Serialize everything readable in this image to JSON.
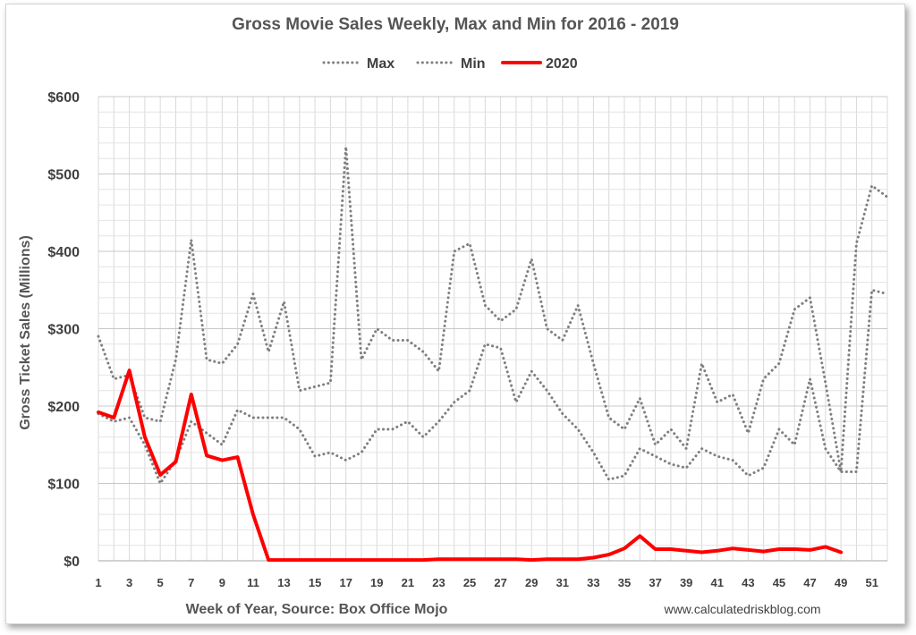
{
  "chart_data": {
    "type": "line",
    "title": "Gross Movie Sales Weekly, Max and Min for 2016 - 2019",
    "xlabel": "Week of Year, Source: Box Office Mojo",
    "ylabel": "Gross Ticket Sales (Millions)",
    "source_note": "www.calculatedriskblog.com",
    "xlim": [
      1,
      52
    ],
    "ylim": [
      0,
      600
    ],
    "y_ticks": [
      0,
      100,
      200,
      300,
      400,
      500,
      600
    ],
    "y_tick_labels": [
      "$0",
      "$100",
      "$200",
      "$300",
      "$400",
      "$500",
      "$600"
    ],
    "x_ticks": [
      1,
      3,
      5,
      7,
      9,
      11,
      13,
      15,
      17,
      19,
      21,
      23,
      25,
      27,
      29,
      31,
      33,
      35,
      37,
      39,
      41,
      43,
      45,
      47,
      49,
      51
    ],
    "grid": true,
    "legend_position": "top",
    "series": [
      {
        "name": "Max",
        "style": "dotted",
        "color": "#7f7f7f",
        "x": [
          1,
          2,
          3,
          4,
          5,
          6,
          7,
          8,
          9,
          10,
          11,
          12,
          13,
          14,
          15,
          16,
          17,
          18,
          19,
          20,
          21,
          22,
          23,
          24,
          25,
          26,
          27,
          28,
          29,
          30,
          31,
          32,
          33,
          34,
          35,
          36,
          37,
          38,
          39,
          40,
          41,
          42,
          43,
          44,
          45,
          46,
          47,
          48,
          49,
          50,
          51,
          52
        ],
        "values": [
          290,
          235,
          240,
          185,
          180,
          260,
          415,
          260,
          255,
          280,
          345,
          270,
          335,
          220,
          225,
          230,
          535,
          260,
          300,
          285,
          285,
          270,
          245,
          400,
          410,
          330,
          310,
          325,
          390,
          300,
          285,
          330,
          255,
          185,
          170,
          210,
          150,
          170,
          145,
          255,
          205,
          215,
          165,
          235,
          255,
          325,
          340,
          230,
          115,
          410,
          485,
          470
        ]
      },
      {
        "name": "Min",
        "style": "dotted",
        "color": "#7f7f7f",
        "x": [
          1,
          2,
          3,
          4,
          5,
          6,
          7,
          8,
          9,
          10,
          11,
          12,
          13,
          14,
          15,
          16,
          17,
          18,
          19,
          20,
          21,
          22,
          23,
          24,
          25,
          26,
          27,
          28,
          29,
          30,
          31,
          32,
          33,
          34,
          35,
          36,
          37,
          38,
          39,
          40,
          41,
          42,
          43,
          44,
          45,
          46,
          47,
          48,
          49,
          50,
          51,
          52
        ],
        "values": [
          190,
          180,
          185,
          150,
          100,
          130,
          180,
          165,
          150,
          195,
          185,
          185,
          185,
          170,
          135,
          140,
          130,
          140,
          170,
          170,
          180,
          160,
          180,
          205,
          220,
          280,
          275,
          205,
          245,
          220,
          190,
          170,
          140,
          105,
          110,
          145,
          135,
          125,
          120,
          145,
          135,
          130,
          110,
          120,
          170,
          150,
          235,
          145,
          115,
          115,
          350,
          345
        ]
      },
      {
        "name": "2020",
        "style": "solid",
        "color": "#ff0000",
        "x": [
          1,
          2,
          3,
          4,
          5,
          6,
          7,
          8,
          9,
          10,
          11,
          12,
          13,
          14,
          15,
          16,
          17,
          18,
          19,
          20,
          21,
          22,
          23,
          24,
          25,
          26,
          27,
          28,
          29,
          30,
          31,
          32,
          33,
          34,
          35,
          36,
          37,
          38,
          39,
          40,
          41,
          42,
          43,
          44,
          45,
          46,
          47,
          48,
          49
        ],
        "values": [
          192,
          185,
          246,
          160,
          111,
          128,
          215,
          136,
          130,
          134,
          60,
          1,
          1,
          1,
          1,
          1,
          1,
          1,
          1,
          1,
          1,
          1,
          2,
          2,
          2,
          2,
          2,
          2,
          1,
          2,
          2,
          2,
          4,
          8,
          16,
          32,
          15,
          15,
          13,
          11,
          13,
          16,
          14,
          12,
          15,
          15,
          14,
          18,
          11
        ]
      }
    ]
  }
}
